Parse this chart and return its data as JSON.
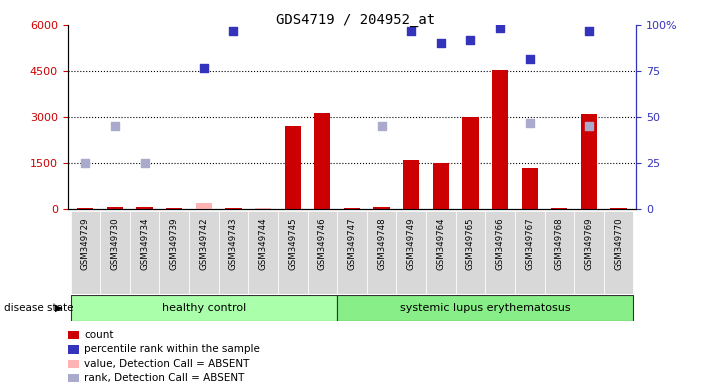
{
  "title": "GDS4719 / 204952_at",
  "samples": [
    "GSM349729",
    "GSM349730",
    "GSM349734",
    "GSM349739",
    "GSM349742",
    "GSM349743",
    "GSM349744",
    "GSM349745",
    "GSM349746",
    "GSM349747",
    "GSM349748",
    "GSM349749",
    "GSM349764",
    "GSM349765",
    "GSM349766",
    "GSM349767",
    "GSM349768",
    "GSM349769",
    "GSM349770"
  ],
  "healthy_count": 9,
  "count_values": [
    50,
    60,
    70,
    50,
    200,
    50,
    50,
    2700,
    3150,
    50,
    80,
    1600,
    1500,
    3000,
    4550,
    1350,
    50,
    3100,
    50
  ],
  "count_absent": [
    false,
    false,
    false,
    false,
    true,
    false,
    true,
    false,
    false,
    false,
    false,
    false,
    false,
    false,
    false,
    false,
    false,
    false,
    false
  ],
  "rank_values": [
    1500,
    2700,
    1500,
    null,
    null,
    null,
    null,
    null,
    null,
    null,
    2700,
    null,
    null,
    null,
    null,
    2800,
    null,
    2700,
    null
  ],
  "rank_absent": [
    false,
    false,
    false,
    false,
    false,
    false,
    false,
    false,
    false,
    false,
    false,
    false,
    false,
    false,
    false,
    false,
    false,
    false,
    false
  ],
  "pct_values": [
    null,
    null,
    null,
    null,
    4600,
    5800,
    null,
    null,
    null,
    null,
    null,
    5800,
    5400,
    5500,
    5900,
    4900,
    null,
    5800,
    null
  ],
  "pct_absent": [
    false,
    false,
    false,
    false,
    false,
    false,
    false,
    false,
    false,
    false,
    false,
    false,
    false,
    false,
    false,
    false,
    false,
    false,
    false
  ],
  "ylim_left": [
    0,
    6000
  ],
  "yticks_left": [
    0,
    1500,
    3000,
    4500,
    6000
  ],
  "yticks_right": [
    0,
    25,
    50,
    75,
    100
  ],
  "color_count": "#cc0000",
  "color_count_absent": "#ffb3b3",
  "color_rank": "#aaaacc",
  "color_pct": "#3333bb",
  "color_healthy": "#aaffaa",
  "color_lupus": "#88ee88",
  "color_gray_box": "#d8d8d8",
  "group_label": "disease state",
  "group_healthy": "healthy control",
  "group_lupus": "systemic lupus erythematosus",
  "legend_items": [
    {
      "color": "#cc0000",
      "label": "count"
    },
    {
      "color": "#3333bb",
      "label": "percentile rank within the sample"
    },
    {
      "color": "#ffb3b3",
      "label": "value, Detection Call = ABSENT"
    },
    {
      "color": "#aaaacc",
      "label": "rank, Detection Call = ABSENT"
    }
  ]
}
